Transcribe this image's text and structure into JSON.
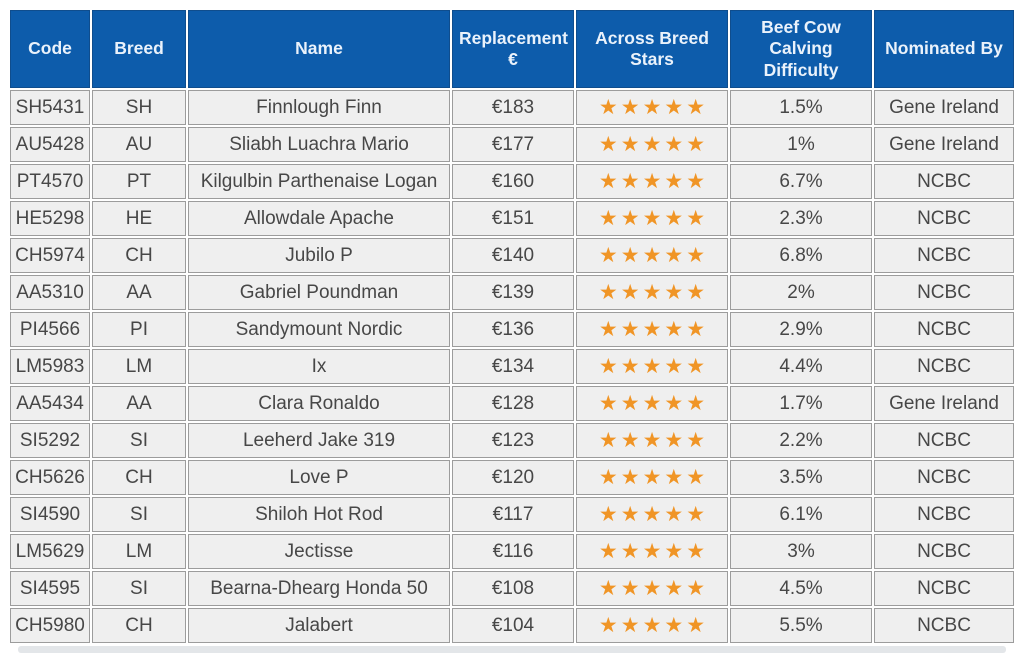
{
  "star_icon": "★",
  "stars_max": 5,
  "colors": {
    "header_bg": "#0d5cab",
    "header_border": "#0f4d8d",
    "header_text": "#eaf2fb",
    "row_bg": "#efefef",
    "row_border": "#9c9c9c",
    "row_text": "#474747",
    "star_color": "#f09526",
    "shadow": "#e3e6e9"
  },
  "chart_data": {
    "type": "table",
    "columns": [
      {
        "key": "code",
        "label": "Code"
      },
      {
        "key": "breed",
        "label": "Breed"
      },
      {
        "key": "name",
        "label": "Name"
      },
      {
        "key": "replacement",
        "label": "Replacement €"
      },
      {
        "key": "stars",
        "label": "Across Breed Stars"
      },
      {
        "key": "calving",
        "label": "Beef Cow Calving Difficulty"
      },
      {
        "key": "nominated_by",
        "label": "Nominated By"
      }
    ],
    "rows": [
      {
        "code": "SH5431",
        "breed": "SH",
        "name": "Finnlough Finn",
        "replacement": "€183",
        "stars": 5,
        "calving": "1.5%",
        "nominated_by": "Gene Ireland"
      },
      {
        "code": "AU5428",
        "breed": "AU",
        "name": "Sliabh Luachra Mario",
        "replacement": "€177",
        "stars": 5,
        "calving": "1%",
        "nominated_by": "Gene Ireland"
      },
      {
        "code": "PT4570",
        "breed": "PT",
        "name": "Kilgulbin Parthenaise Logan",
        "replacement": "€160",
        "stars": 5,
        "calving": "6.7%",
        "nominated_by": "NCBC"
      },
      {
        "code": "HE5298",
        "breed": "HE",
        "name": "Allowdale Apache",
        "replacement": "€151",
        "stars": 5,
        "calving": "2.3%",
        "nominated_by": "NCBC"
      },
      {
        "code": "CH5974",
        "breed": "CH",
        "name": "Jubilo P",
        "replacement": "€140",
        "stars": 5,
        "calving": "6.8%",
        "nominated_by": "NCBC"
      },
      {
        "code": "AA5310",
        "breed": "AA",
        "name": "Gabriel Poundman",
        "replacement": "€139",
        "stars": 5,
        "calving": "2%",
        "nominated_by": "NCBC"
      },
      {
        "code": "PI4566",
        "breed": "PI",
        "name": "Sandymount Nordic",
        "replacement": "€136",
        "stars": 5,
        "calving": "2.9%",
        "nominated_by": "NCBC"
      },
      {
        "code": "LM5983",
        "breed": "LM",
        "name": "Ix",
        "replacement": "€134",
        "stars": 5,
        "calving": "4.4%",
        "nominated_by": "NCBC"
      },
      {
        "code": "AA5434",
        "breed": "AA",
        "name": "Clara Ronaldo",
        "replacement": "€128",
        "stars": 5,
        "calving": "1.7%",
        "nominated_by": "Gene Ireland"
      },
      {
        "code": "SI5292",
        "breed": "SI",
        "name": "Leeherd Jake 319",
        "replacement": "€123",
        "stars": 5,
        "calving": "2.2%",
        "nominated_by": "NCBC"
      },
      {
        "code": "CH5626",
        "breed": "CH",
        "name": "Love P",
        "replacement": "€120",
        "stars": 5,
        "calving": "3.5%",
        "nominated_by": "NCBC"
      },
      {
        "code": "SI4590",
        "breed": "SI",
        "name": "Shiloh Hot Rod",
        "replacement": "€117",
        "stars": 5,
        "calving": "6.1%",
        "nominated_by": "NCBC"
      },
      {
        "code": "LM5629",
        "breed": "LM",
        "name": "Jectisse",
        "replacement": "€116",
        "stars": 5,
        "calving": "3%",
        "nominated_by": "NCBC"
      },
      {
        "code": "SI4595",
        "breed": "SI",
        "name": "Bearna-Dhearg Honda 50",
        "replacement": "€108",
        "stars": 5,
        "calving": "4.5%",
        "nominated_by": "NCBC"
      },
      {
        "code": "CH5980",
        "breed": "CH",
        "name": "Jalabert",
        "replacement": "€104",
        "stars": 5,
        "calving": "5.5%",
        "nominated_by": "NCBC"
      }
    ]
  }
}
